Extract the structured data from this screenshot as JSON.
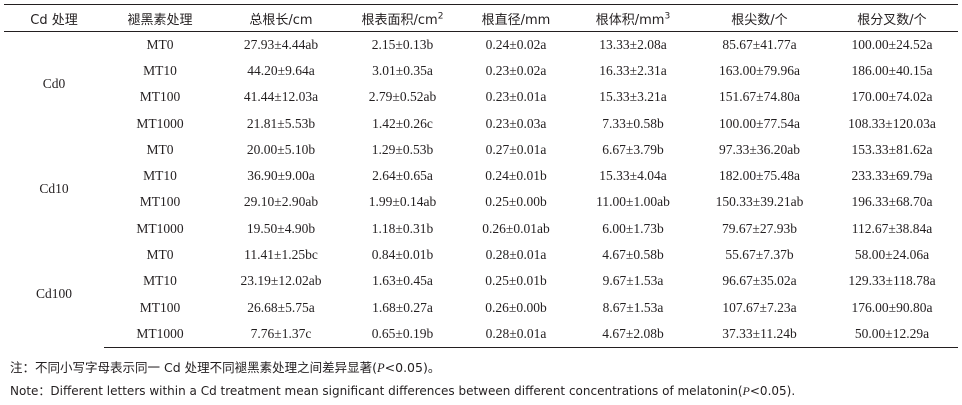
{
  "headers": [
    {
      "label": "Cd 处理",
      "sup": ""
    },
    {
      "label": "褪黑素处理",
      "sup": ""
    },
    {
      "label": "总根长/cm",
      "sup": ""
    },
    {
      "label": "根表面积/cm",
      "sup": "2"
    },
    {
      "label": "根直径/mm",
      "sup": ""
    },
    {
      "label": "根体积/mm",
      "sup": "3"
    },
    {
      "label": "根尖数/个",
      "sup": ""
    },
    {
      "label": "根分叉数/个",
      "sup": ""
    }
  ],
  "groups": [
    {
      "cd": "Cd0",
      "rows": [
        [
          "MT0",
          "27.93±4.44ab",
          "2.15±0.13b",
          "0.24±0.02a",
          "13.33±2.08a",
          "85.67±41.77a",
          "100.00±24.52a"
        ],
        [
          "MT10",
          "44.20±9.64a",
          "3.01±0.35a",
          "0.23±0.02a",
          "16.33±2.31a",
          "163.00±79.96a",
          "186.00±40.15a"
        ],
        [
          "MT100",
          "41.44±12.03a",
          "2.79±0.52ab",
          "0.23±0.01a",
          "15.33±3.21a",
          "151.67±74.80a",
          "170.00±74.02a"
        ],
        [
          "MT1000",
          "21.81±5.53b",
          "1.42±0.26c",
          "0.23±0.03a",
          "7.33±0.58b",
          "100.00±77.54a",
          "108.33±120.03a"
        ]
      ]
    },
    {
      "cd": "Cd10",
      "rows": [
        [
          "MT0",
          "20.00±5.10b",
          "1.29±0.53b",
          "0.27±0.01a",
          "6.67±3.79b",
          "97.33±36.20ab",
          "153.33±81.62a"
        ],
        [
          "MT10",
          "36.90±9.00a",
          "2.64±0.65a",
          "0.24±0.01b",
          "15.33±4.04a",
          "182.00±75.48a",
          "233.33±69.79a"
        ],
        [
          "MT100",
          "29.10±2.90ab",
          "1.99±0.14ab",
          "0.25±0.00b",
          "11.00±1.00ab",
          "150.33±39.21ab",
          "196.33±68.70a"
        ],
        [
          "MT1000",
          "19.50±4.90b",
          "1.18±0.31b",
          "0.26±0.01ab",
          "6.00±1.73b",
          "79.67±27.93b",
          "112.67±38.84a"
        ]
      ]
    },
    {
      "cd": "Cd100",
      "rows": [
        [
          "MT0",
          "11.41±1.25bc",
          "0.84±0.01b",
          "0.28±0.01a",
          "4.67±0.58b",
          "55.67±7.37b",
          "58.00±24.06a"
        ],
        [
          "MT10",
          "23.19±12.02ab",
          "1.63±0.45a",
          "0.25±0.01b",
          "9.67±1.53a",
          "96.67±35.02a",
          "129.33±118.78a"
        ],
        [
          "MT100",
          "26.68±5.75a",
          "1.68±0.27a",
          "0.26±0.00b",
          "8.67±1.53a",
          "107.67±7.23a",
          "176.00±90.80a"
        ],
        [
          "MT1000",
          "7.76±1.37c",
          "0.65±0.19b",
          "0.28±0.01a",
          "4.67±2.08b",
          "37.33±11.24b",
          "50.00±12.29a"
        ]
      ]
    }
  ],
  "notes": {
    "cn_prefix": "注：不同小写字母表示同一 Cd 处理不同褪黑素处理之间差异显著(",
    "cn_p": "P",
    "cn_suffix": "<0.05)。",
    "en_prefix": "Note：Different letters within a Cd treatment mean significant differences between different concentrations of melatonin(",
    "en_p": "P",
    "en_suffix": "<0.05)."
  }
}
